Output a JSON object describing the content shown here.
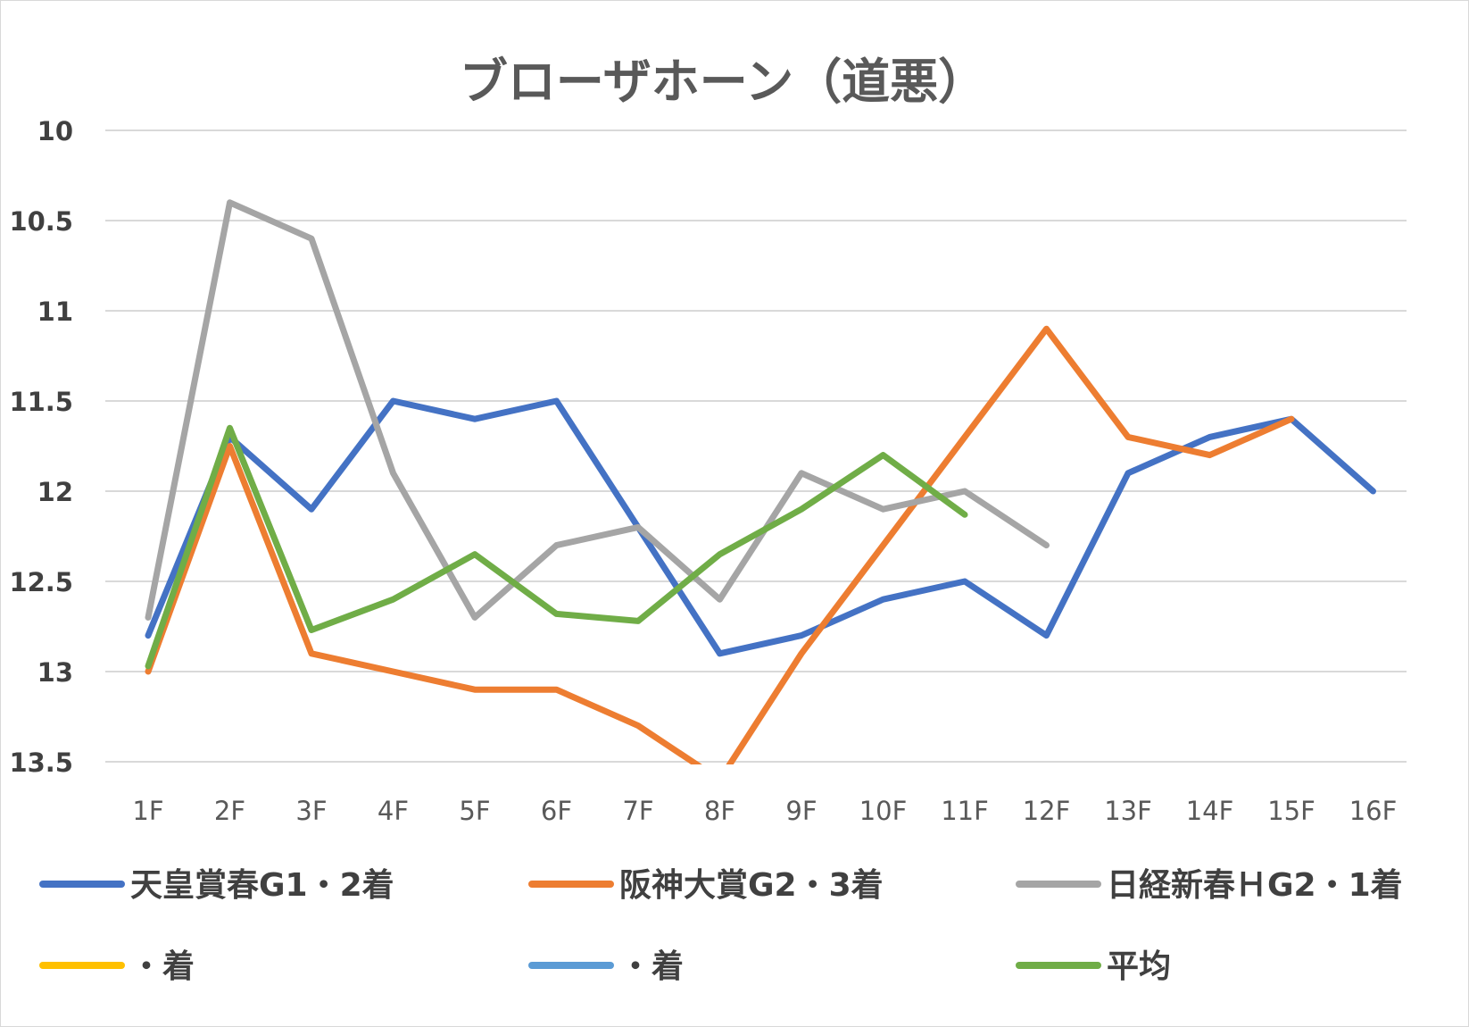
{
  "chart_data": {
    "type": "line",
    "title": "ブローザホーン（道悪）",
    "xlabel": "",
    "ylabel": "",
    "categories": [
      "1F",
      "2F",
      "3F",
      "4F",
      "5F",
      "6F",
      "7F",
      "8F",
      "9F",
      "10F",
      "11F",
      "12F",
      "13F",
      "14F",
      "15F",
      "16F"
    ],
    "y_axis": {
      "min": 10,
      "max": 13.5,
      "step": 0.5,
      "reversed": true,
      "tick_labels": [
        "10",
        "10.5",
        "11",
        "11.5",
        "12",
        "12.5",
        "13",
        "13.5"
      ]
    },
    "grid": true,
    "legend_position": "bottom",
    "series": [
      {
        "name": "天皇賞春G1・2着",
        "color": "#4472c4",
        "values": [
          12.8,
          11.7,
          12.1,
          11.5,
          11.6,
          11.5,
          12.2,
          12.9,
          12.8,
          12.6,
          12.5,
          12.8,
          11.9,
          11.7,
          11.6,
          12.0
        ]
      },
      {
        "name": "阪神大賞G2・3着",
        "color": "#ed7d31",
        "values": [
          13.0,
          11.75,
          12.9,
          13.0,
          13.1,
          13.1,
          13.3,
          13.6,
          12.9,
          12.3,
          11.7,
          11.1,
          11.7,
          11.8,
          11.6,
          null
        ]
      },
      {
        "name": "日経新春ＨG2・1着",
        "color": "#a5a5a5",
        "values": [
          12.7,
          10.4,
          10.6,
          11.9,
          12.7,
          12.3,
          12.2,
          12.6,
          11.9,
          12.1,
          12.0,
          12.3,
          null,
          null,
          null,
          null
        ]
      },
      {
        "name": "・着",
        "color": "#ffc000",
        "values": [
          null,
          null,
          null,
          null,
          null,
          null,
          null,
          null,
          null,
          null,
          null,
          null,
          null,
          null,
          null,
          null
        ]
      },
      {
        "name": "・着",
        "color": "#5b9bd5",
        "values": [
          null,
          null,
          null,
          null,
          null,
          null,
          null,
          null,
          null,
          null,
          null,
          null,
          null,
          null,
          null,
          null
        ]
      },
      {
        "name": "平均",
        "color": "#70ad47",
        "values": [
          12.97,
          11.65,
          12.77,
          12.6,
          12.35,
          12.68,
          12.72,
          12.35,
          12.1,
          11.8,
          12.13,
          null,
          null,
          null,
          null,
          null
        ]
      }
    ]
  }
}
